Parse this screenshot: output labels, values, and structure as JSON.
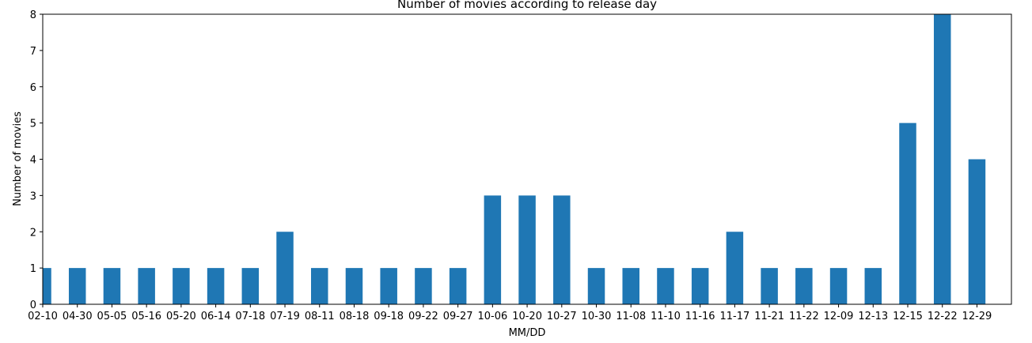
{
  "chart_data": {
    "type": "bar",
    "title": "Number of movies according to release day",
    "xlabel": "MM/DD",
    "ylabel": "Number of movies",
    "categories": [
      "02-10",
      "04-30",
      "05-05",
      "05-16",
      "05-20",
      "06-14",
      "07-18",
      "07-19",
      "08-11",
      "08-18",
      "09-18",
      "09-22",
      "09-27",
      "10-06",
      "10-20",
      "10-27",
      "10-30",
      "11-08",
      "11-10",
      "11-16",
      "11-17",
      "11-21",
      "11-22",
      "12-09",
      "12-13",
      "12-15",
      "12-22",
      "12-29"
    ],
    "values": [
      1,
      1,
      1,
      1,
      1,
      1,
      1,
      2,
      1,
      1,
      1,
      1,
      1,
      3,
      3,
      3,
      1,
      1,
      1,
      1,
      2,
      1,
      1,
      1,
      1,
      5,
      8,
      4
    ],
    "ylim": [
      0,
      8
    ],
    "yticks": [
      0,
      1,
      2,
      3,
      4,
      5,
      6,
      7,
      8
    ],
    "grid": false,
    "legend": "none",
    "bar_color": "#1f77b4"
  }
}
